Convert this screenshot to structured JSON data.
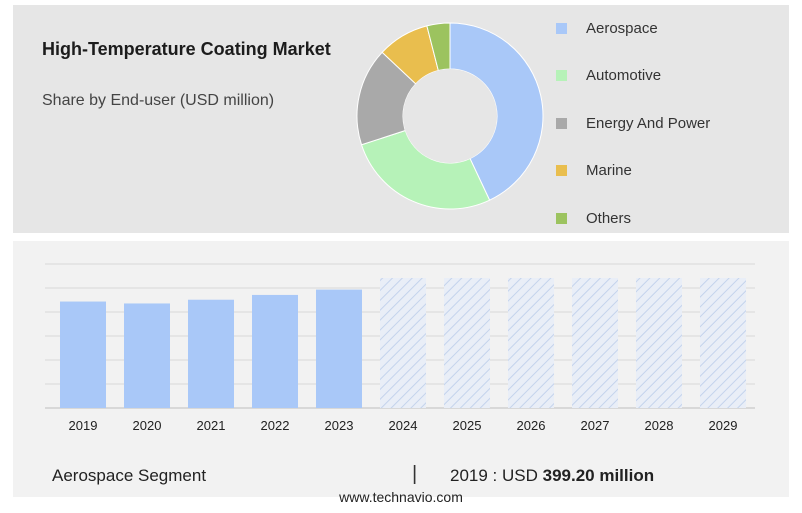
{
  "header": {
    "title": "High-Temperature Coating Market",
    "subtitle": "Share by End-user (USD million)"
  },
  "chart_data": [
    {
      "type": "pie",
      "variant": "donut",
      "title": "High-Temperature Coating Market",
      "subtitle": "Share by End-user (USD million)",
      "legend_position": "right",
      "categories": [
        "Aerospace",
        "Automotive",
        "Energy And Power",
        "Marine",
        "Others"
      ],
      "values": [
        43,
        27,
        17,
        9,
        4
      ],
      "colors": [
        "#a9c8f8",
        "#b6f2b8",
        "#a9a9a9",
        "#e9be4e",
        "#9cc35f"
      ]
    },
    {
      "type": "bar",
      "categories": [
        "2019",
        "2020",
        "2021",
        "2022",
        "2023",
        "2024",
        "2025",
        "2026",
        "2027",
        "2028",
        "2029"
      ],
      "values": [
        399.2,
        392,
        406,
        424,
        444,
        null,
        null,
        null,
        null,
        null,
        null
      ],
      "forecast_from": "2024",
      "ylim": [
        0,
        540
      ],
      "grid": true,
      "bar_color": "#a9c8f8",
      "forecast_color": "#cfddf2"
    }
  ],
  "footer": {
    "segment_label": "Aerospace Segment",
    "separator": "|",
    "value_prefix": "2019 : USD",
    "value_bold": "399.20 million",
    "source": "www.technavio.com"
  }
}
